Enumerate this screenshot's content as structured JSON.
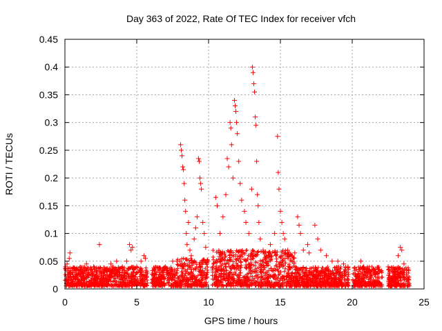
{
  "chart_data": {
    "type": "scatter",
    "title": "Day 363 of 2022, Rate Of TEC Index for receiver vfch",
    "xlabel": "GPS time / hours",
    "ylabel": "ROTI / TECUs",
    "xlim": [
      0,
      25
    ],
    "ylim": [
      0,
      0.45
    ],
    "xticks": [
      0,
      5,
      10,
      15,
      20,
      25
    ],
    "xtick_labels": [
      "0",
      "5",
      "10",
      "15",
      "20",
      "25"
    ],
    "yticks": [
      0,
      0.05,
      0.1,
      0.15,
      0.2,
      0.25,
      0.3,
      0.35,
      0.4,
      0.45
    ],
    "ytick_labels": [
      "0",
      "0.05",
      "0.1",
      "0.15",
      "0.2",
      "0.25",
      "0.3",
      "0.35",
      "0.4",
      "0.45"
    ],
    "grid": true,
    "marker": "+",
    "color": "#ff0000",
    "series": [
      {
        "name": "ROTI",
        "points": [
          [
            0.05,
            0.04
          ],
          [
            0.15,
            0.045
          ],
          [
            0.3,
            0.055
          ],
          [
            0.35,
            0.065
          ],
          [
            0.5,
            0.03
          ],
          [
            0.8,
            0.035
          ],
          [
            1.2,
            0.03
          ],
          [
            1.5,
            0.045
          ],
          [
            2.0,
            0.04
          ],
          [
            2.4,
            0.08
          ],
          [
            2.8,
            0.035
          ],
          [
            3.2,
            0.045
          ],
          [
            3.6,
            0.05
          ],
          [
            4.0,
            0.04
          ],
          [
            4.3,
            0.05
          ],
          [
            4.5,
            0.08
          ],
          [
            4.6,
            0.07
          ],
          [
            4.7,
            0.075
          ],
          [
            5.0,
            0.04
          ],
          [
            5.3,
            0.05
          ],
          [
            5.5,
            0.06
          ],
          [
            5.6,
            0.055
          ],
          [
            6.2,
            0.025
          ],
          [
            6.6,
            0.03
          ],
          [
            7.0,
            0.04
          ],
          [
            7.5,
            0.05
          ],
          [
            7.8,
            0.05
          ],
          [
            8.0,
            0.05
          ],
          [
            8.05,
            0.26
          ],
          [
            8.1,
            0.25
          ],
          [
            8.15,
            0.24
          ],
          [
            8.2,
            0.22
          ],
          [
            8.25,
            0.215
          ],
          [
            8.3,
            0.19
          ],
          [
            8.35,
            0.16
          ],
          [
            8.4,
            0.14
          ],
          [
            8.45,
            0.1
          ],
          [
            8.5,
            0.08
          ],
          [
            8.6,
            0.12
          ],
          [
            8.7,
            0.07
          ],
          [
            8.8,
            0.06
          ],
          [
            9.0,
            0.09
          ],
          [
            9.1,
            0.11
          ],
          [
            9.2,
            0.13
          ],
          [
            9.3,
            0.235
          ],
          [
            9.35,
            0.23
          ],
          [
            9.4,
            0.2
          ],
          [
            9.45,
            0.19
          ],
          [
            9.5,
            0.18
          ],
          [
            9.6,
            0.12
          ],
          [
            9.7,
            0.1
          ],
          [
            9.8,
            0.075
          ],
          [
            9.9,
            0.05
          ],
          [
            10.3,
            0.04
          ],
          [
            10.5,
            0.165
          ],
          [
            10.6,
            0.15
          ],
          [
            10.8,
            0.1
          ],
          [
            11.0,
            0.13
          ],
          [
            11.2,
            0.17
          ],
          [
            11.3,
            0.235
          ],
          [
            11.4,
            0.22
          ],
          [
            11.5,
            0.3
          ],
          [
            11.55,
            0.29
          ],
          [
            11.6,
            0.26
          ],
          [
            11.7,
            0.2
          ],
          [
            11.8,
            0.34
          ],
          [
            11.85,
            0.33
          ],
          [
            11.9,
            0.32
          ],
          [
            11.95,
            0.3
          ],
          [
            12.0,
            0.28
          ],
          [
            12.1,
            0.23
          ],
          [
            12.2,
            0.19
          ],
          [
            12.3,
            0.16
          ],
          [
            12.5,
            0.14
          ],
          [
            12.6,
            0.12
          ],
          [
            12.8,
            0.1
          ],
          [
            13.0,
            0.18
          ],
          [
            13.05,
            0.4
          ],
          [
            13.1,
            0.39
          ],
          [
            13.15,
            0.37
          ],
          [
            13.2,
            0.355
          ],
          [
            13.25,
            0.31
          ],
          [
            13.3,
            0.295
          ],
          [
            13.35,
            0.23
          ],
          [
            13.4,
            0.17
          ],
          [
            13.45,
            0.15
          ],
          [
            13.5,
            0.12
          ],
          [
            13.6,
            0.09
          ],
          [
            13.8,
            0.07
          ],
          [
            14.0,
            0.06
          ],
          [
            14.3,
            0.08
          ],
          [
            14.6,
            0.1
          ],
          [
            14.8,
            0.275
          ],
          [
            14.85,
            0.21
          ],
          [
            14.9,
            0.18
          ],
          [
            15.0,
            0.14
          ],
          [
            15.1,
            0.12
          ],
          [
            15.2,
            0.1
          ],
          [
            15.3,
            0.09
          ],
          [
            15.5,
            0.07
          ],
          [
            15.8,
            0.06
          ],
          [
            16.0,
            0.065
          ],
          [
            16.2,
            0.13
          ],
          [
            16.3,
            0.115
          ],
          [
            16.4,
            0.1
          ],
          [
            16.6,
            0.07
          ],
          [
            16.9,
            0.08
          ],
          [
            17.0,
            0.065
          ],
          [
            17.4,
            0.115
          ],
          [
            17.6,
            0.09
          ],
          [
            17.8,
            0.07
          ],
          [
            18.2,
            0.06
          ],
          [
            18.6,
            0.05
          ],
          [
            19.0,
            0.05
          ],
          [
            19.4,
            0.045
          ],
          [
            19.7,
            0.04
          ],
          [
            20.3,
            0.035
          ],
          [
            20.6,
            0.05
          ],
          [
            20.8,
            0.04
          ],
          [
            21.2,
            0.03
          ],
          [
            21.6,
            0.035
          ],
          [
            22.5,
            0.04
          ],
          [
            22.9,
            0.035
          ],
          [
            23.2,
            0.06
          ],
          [
            23.35,
            0.075
          ],
          [
            23.45,
            0.07
          ],
          [
            23.6,
            0.045
          ],
          [
            23.9,
            0.035
          ]
        ]
      }
    ]
  }
}
